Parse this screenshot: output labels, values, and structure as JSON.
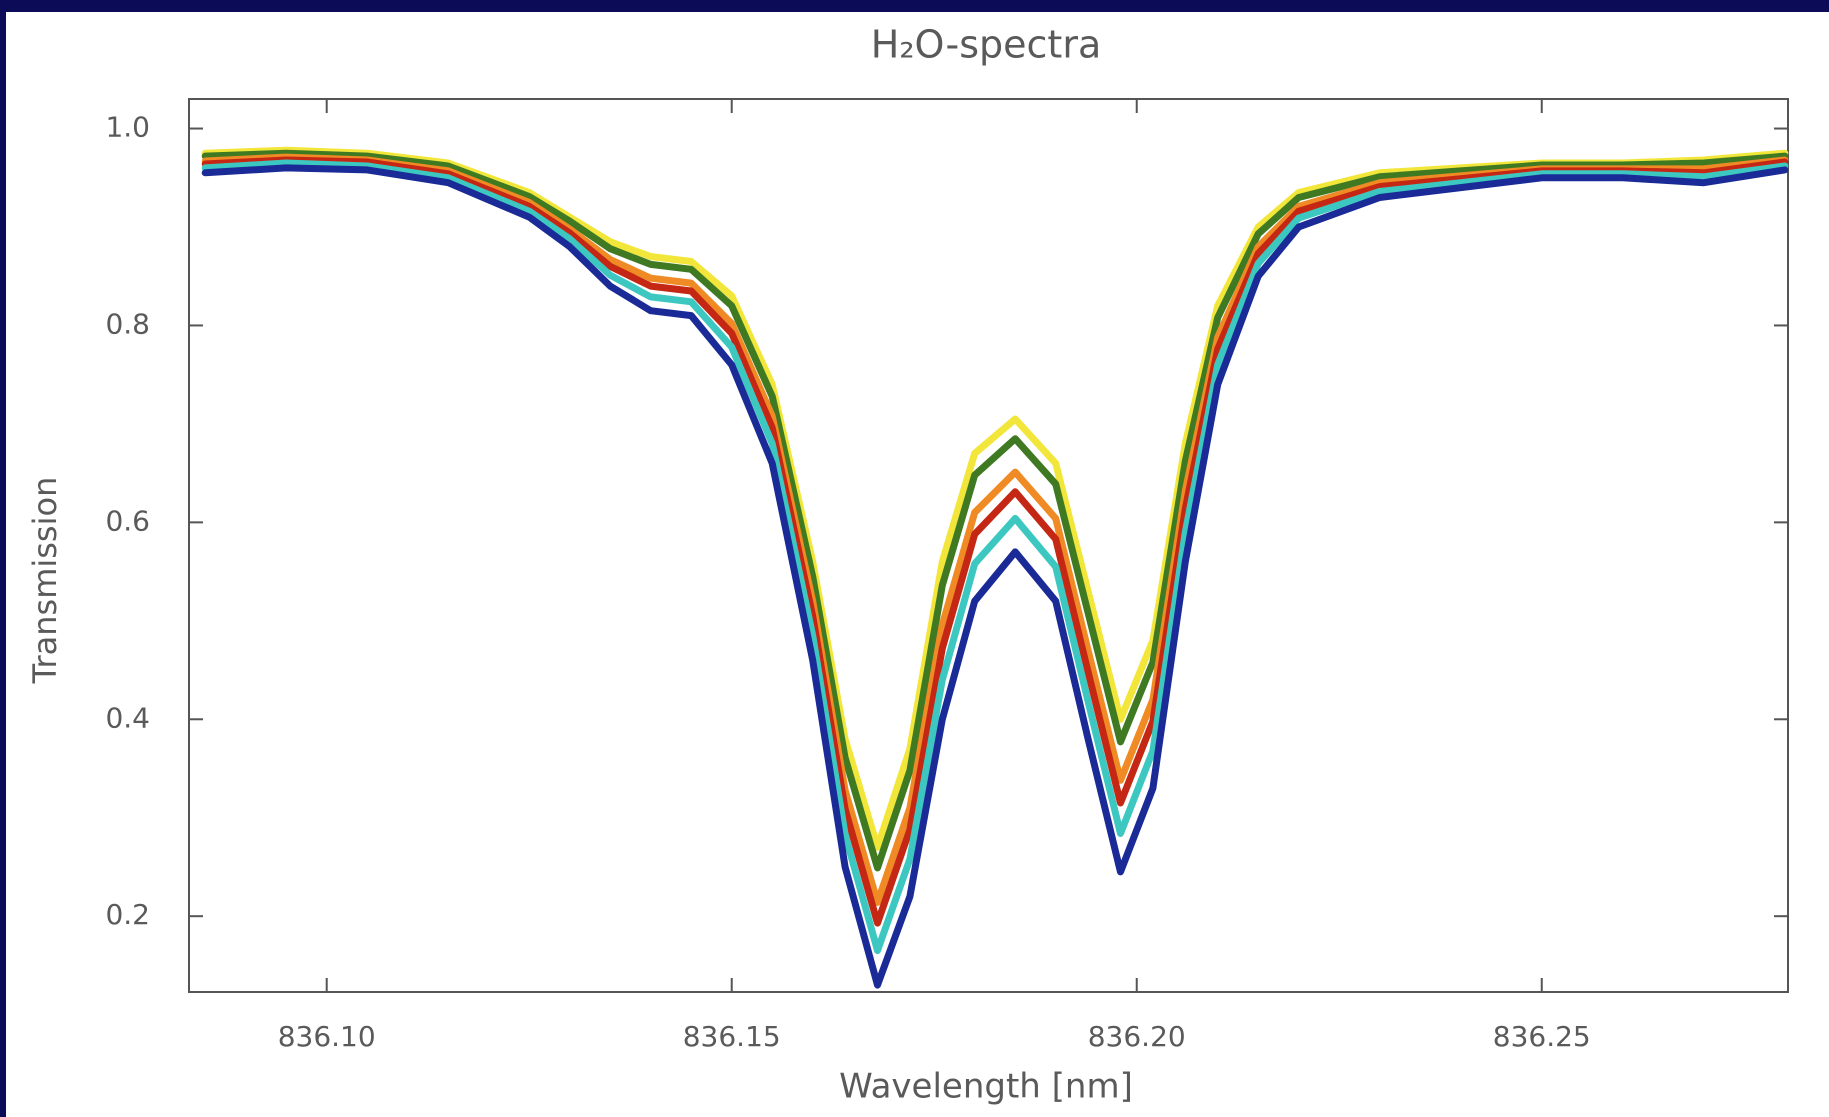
{
  "chart_data": {
    "type": "line",
    "title": "H₂O-spectra",
    "xlabel": "Wavelength [nm]",
    "ylabel": "Transmission",
    "x": [
      836.085,
      836.095,
      836.105,
      836.115,
      836.125,
      836.13,
      836.135,
      836.14,
      836.145,
      836.15,
      836.155,
      836.16,
      836.164,
      836.168,
      836.172,
      836.176,
      836.18,
      836.185,
      836.19,
      836.194,
      836.198,
      836.202,
      836.206,
      836.21,
      836.215,
      836.22,
      836.23,
      836.24,
      836.25,
      836.26,
      836.27,
      836.28
    ],
    "series": [
      {
        "color": "#f2e63a",
        "values": [
          0.975,
          0.978,
          0.975,
          0.965,
          0.935,
          0.91,
          0.885,
          0.87,
          0.865,
          0.83,
          0.74,
          0.56,
          0.38,
          0.27,
          0.37,
          0.56,
          0.67,
          0.705,
          0.66,
          0.53,
          0.4,
          0.48,
          0.68,
          0.82,
          0.9,
          0.935,
          0.955,
          0.96,
          0.965,
          0.965,
          0.968,
          0.975
        ]
      },
      {
        "color": "#3f7a22",
        "values": [
          0.972,
          0.975,
          0.972,
          0.962,
          0.931,
          0.906,
          0.878,
          0.862,
          0.857,
          0.82,
          0.728,
          0.545,
          0.361,
          0.249,
          0.348,
          0.536,
          0.648,
          0.685,
          0.639,
          0.508,
          0.377,
          0.458,
          0.662,
          0.808,
          0.893,
          0.93,
          0.951,
          0.957,
          0.963,
          0.963,
          0.965,
          0.972
        ]
      },
      {
        "color": "#ef8a24",
        "values": [
          0.967,
          0.971,
          0.968,
          0.957,
          0.925,
          0.898,
          0.867,
          0.848,
          0.843,
          0.802,
          0.708,
          0.52,
          0.328,
          0.214,
          0.31,
          0.496,
          0.61,
          0.651,
          0.604,
          0.47,
          0.338,
          0.42,
          0.632,
          0.788,
          0.88,
          0.921,
          0.945,
          0.952,
          0.959,
          0.959,
          0.959,
          0.968
        ]
      },
      {
        "color": "#c42814",
        "values": [
          0.964,
          0.968,
          0.966,
          0.954,
          0.921,
          0.894,
          0.86,
          0.84,
          0.835,
          0.792,
          0.696,
          0.505,
          0.309,
          0.193,
          0.288,
          0.472,
          0.588,
          0.631,
          0.583,
          0.448,
          0.315,
          0.398,
          0.614,
          0.776,
          0.873,
          0.916,
          0.941,
          0.949,
          0.957,
          0.957,
          0.955,
          0.966
        ]
      },
      {
        "color": "#3cc8c0",
        "values": [
          0.96,
          0.965,
          0.962,
          0.95,
          0.916,
          0.888,
          0.851,
          0.829,
          0.824,
          0.778,
          0.68,
          0.485,
          0.283,
          0.165,
          0.258,
          0.44,
          0.558,
          0.604,
          0.555,
          0.418,
          0.284,
          0.368,
          0.59,
          0.76,
          0.863,
          0.909,
          0.936,
          0.945,
          0.954,
          0.954,
          0.951,
          0.962
        ]
      },
      {
        "color": "#1a2a96",
        "values": [
          0.955,
          0.96,
          0.958,
          0.945,
          0.91,
          0.88,
          0.84,
          0.815,
          0.81,
          0.76,
          0.66,
          0.46,
          0.25,
          0.13,
          0.22,
          0.4,
          0.52,
          0.57,
          0.52,
          0.38,
          0.245,
          0.33,
          0.56,
          0.74,
          0.85,
          0.9,
          0.93,
          0.94,
          0.95,
          0.95,
          0.945,
          0.958
        ]
      }
    ],
    "xlim": [
      836.083,
      836.2804
    ],
    "ylim": [
      0.123,
      1.03
    ],
    "xticks": [
      {
        "value": 836.1,
        "label": "836.10"
      },
      836.15,
      {
        "value": 836.2,
        "label": "836.20"
      },
      836.25
    ],
    "yticks": [
      {
        "value": 1,
        "label": "1.0"
      },
      0.8,
      0.6,
      0.4,
      0.2
    ]
  }
}
